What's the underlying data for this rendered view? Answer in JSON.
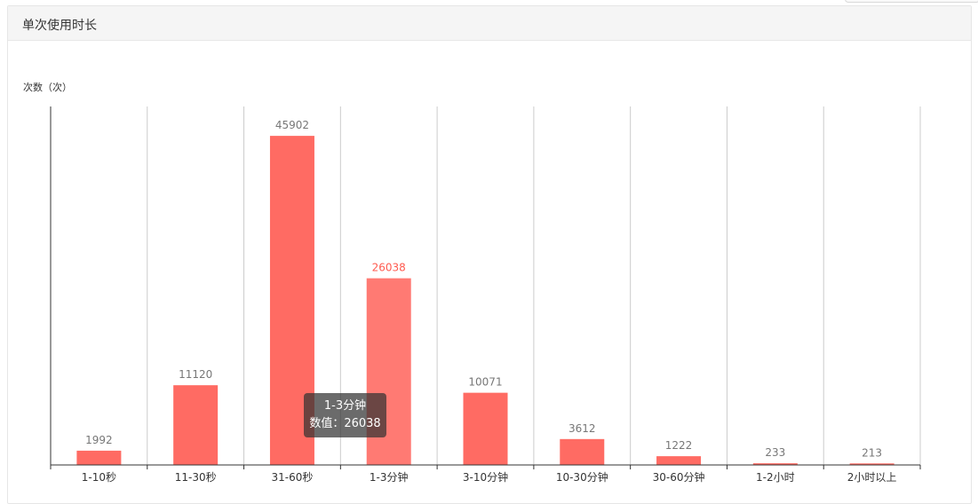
{
  "panel": {
    "title": "单次使用时长"
  },
  "tooltip": {
    "category": "1-3分钟",
    "value_label": "数值：26038"
  },
  "colors": {
    "bar": "#ff6b63",
    "bar_hover": "#ff7a73",
    "highlight_label": "#ff5a4f",
    "grid": "#cccccc",
    "axis": "#333333"
  },
  "chart_data": {
    "type": "bar",
    "title": "",
    "ylabel": "次数（次）",
    "xlabel": "",
    "categories": [
      "1-10秒",
      "11-30秒",
      "31-60秒",
      "1-3分钟",
      "3-10分钟",
      "10-30分钟",
      "30-60分钟",
      "1-2小时",
      "2小时以上"
    ],
    "values": [
      1992,
      11120,
      45902,
      26038,
      10071,
      3612,
      1222,
      233,
      213
    ],
    "highlighted_category": "1-3分钟",
    "ylim": [
      0,
      50000
    ],
    "grid": "vertical",
    "show_data_labels": true
  }
}
